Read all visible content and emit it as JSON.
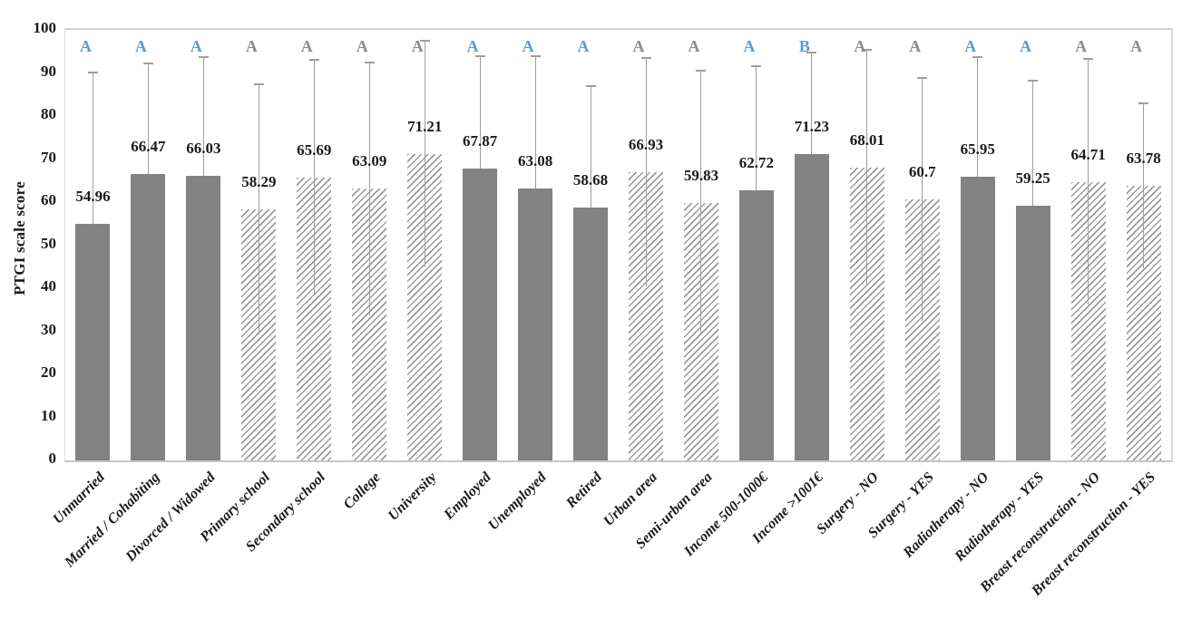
{
  "chart": {
    "background": "#ffffff",
    "y_axis": {
      "title": "PTGI scale score",
      "min": 0,
      "max": 100,
      "tick_labels": [
        "0",
        "10",
        "20",
        "30",
        "40",
        "50",
        "60",
        "70",
        "80",
        "90",
        "100"
      ]
    },
    "colors": {
      "solid_bar": "#828282",
      "hatch_stripe": "#9b9b9b",
      "error_bar": "#9e9e9e",
      "letter_blue": "#5b9bd5",
      "letter_gray": "#8c8c8c",
      "text": "#1a1a1a",
      "plot_border": "#c9c9c9"
    }
  },
  "chart_data": {
    "type": "bar",
    "title": "",
    "xlabel": "",
    "ylabel": "PTGI scale score",
    "ylim": [
      0,
      100
    ],
    "grid": false,
    "legend": null,
    "categories": [
      "Unmarried",
      "Married / Cohabiting",
      "Divorced / Widowed",
      "Primary school",
      "Secondary school",
      "College",
      "University",
      "Employed",
      "Unemployed",
      "Retired",
      "Urban area",
      "Semi-urban area",
      "Income 500-1000€",
      "Income >1001€",
      "Surgery - NO",
      "Surgery - YES",
      "Radiotherapy - NO",
      "Radiotherapy - YES",
      "Breast reconstruction - NO",
      "Breast reconstruction - YES"
    ],
    "values": [
      54.96,
      66.47,
      66.03,
      58.29,
      65.69,
      63.09,
      71.21,
      67.87,
      63.08,
      58.68,
      66.93,
      59.83,
      62.72,
      71.23,
      68.01,
      60.7,
      65.95,
      59.25,
      64.71,
      63.78
    ],
    "value_labels": [
      "54.96",
      "66.47",
      "66.03",
      "58.29",
      "65.69",
      "63.09",
      "71.21",
      "67.87",
      "63.08",
      "58.68",
      "66.93",
      "59.83",
      "62.72",
      "71.23",
      "68.01",
      "60.7",
      "65.95",
      "59.25",
      "64.71",
      "63.78"
    ],
    "error_plus": [
      35.1,
      25.7,
      27.7,
      29.0,
      27.3,
      29.4,
      26.3,
      26.0,
      30.9,
      28.3,
      26.5,
      30.7,
      28.9,
      23.5,
      27.4,
      28.2,
      27.8,
      28.9,
      28.5,
      19.2
    ],
    "bar_styles": [
      "solid",
      "solid",
      "solid",
      "hatch",
      "hatch",
      "hatch",
      "hatch",
      "solid",
      "solid",
      "solid",
      "hatch",
      "hatch",
      "solid",
      "solid",
      "hatch",
      "hatch",
      "solid",
      "solid",
      "hatch",
      "hatch"
    ],
    "sig_letters": [
      "A",
      "A",
      "A",
      "A",
      "A",
      "A",
      "A",
      "A",
      "A",
      "A",
      "A",
      "A",
      "A",
      "B",
      "A",
      "A",
      "A",
      "A",
      "A",
      "A"
    ],
    "sig_letter_colors": [
      "blue",
      "blue",
      "blue",
      "gray",
      "gray",
      "gray",
      "gray",
      "blue",
      "blue",
      "blue",
      "gray",
      "gray",
      "blue",
      "blue",
      "gray",
      "gray",
      "blue",
      "blue",
      "gray",
      "gray"
    ]
  }
}
